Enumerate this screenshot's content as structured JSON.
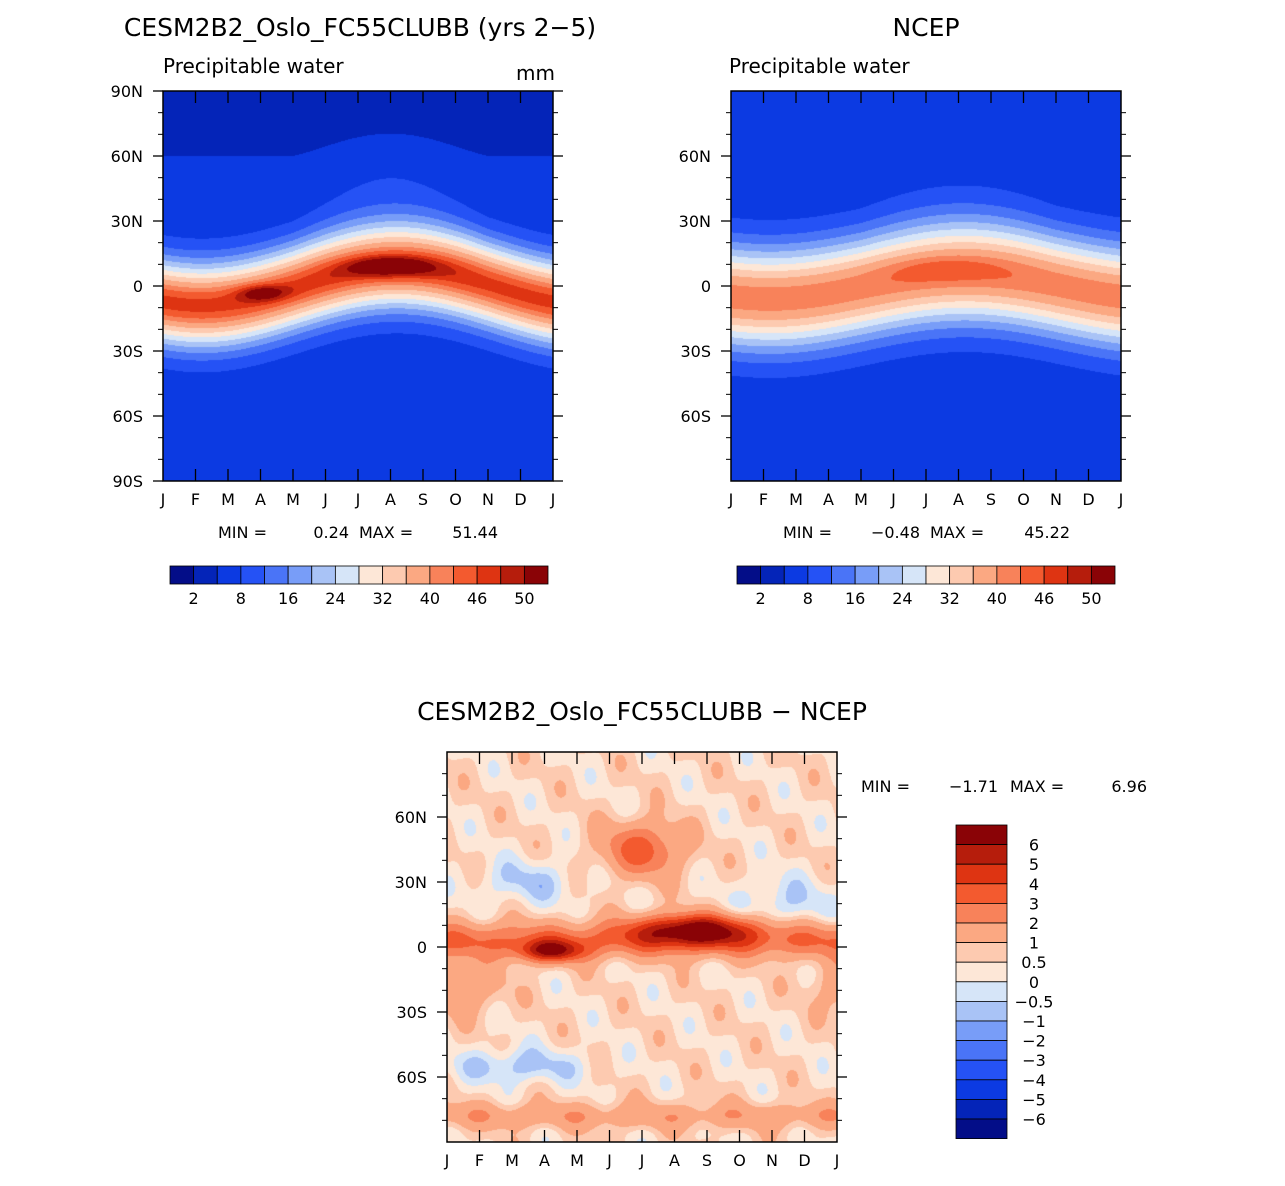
{
  "chart_data": [
    {
      "type": "heatmap",
      "id": "model",
      "title": "CESM2B2_Oslo_FC55CLUBB (yrs 2−5)",
      "subtitle": "Precipitable water",
      "units": "mm",
      "x_categories": [
        "J",
        "F",
        "M",
        "A",
        "M",
        "J",
        "J",
        "A",
        "S",
        "O",
        "N",
        "D",
        "J"
      ],
      "y_ticks": [
        "90N",
        "60N",
        "30N",
        "0",
        "30S",
        "60S",
        "90S"
      ],
      "y_tick_values": [
        90,
        60,
        30,
        0,
        -30,
        -60,
        -90
      ],
      "ylim": [
        -90,
        90
      ],
      "stats": {
        "min_label": "MIN =",
        "min": "0.24",
        "max_label": "MAX =",
        "max": "51.44"
      },
      "colorbar_labels": [
        "2",
        "8",
        "16",
        "24",
        "32",
        "40",
        "46",
        "50"
      ],
      "colorbar_colors": [
        "#030d88",
        "#0424b8",
        "#0c3ae2",
        "#2552f5",
        "#4a74f7",
        "#789df8",
        "#a9c3f6",
        "#d6e5f8",
        "#fde7d7",
        "#fdcab0",
        "#fba882",
        "#f8825a",
        "#f35a2f",
        "#de3412",
        "#b61d0c",
        "#8a0306"
      ]
    },
    {
      "type": "heatmap",
      "id": "obs",
      "title": "NCEP",
      "subtitle": "Precipitable water",
      "x_categories": [
        "J",
        "F",
        "M",
        "A",
        "M",
        "J",
        "J",
        "A",
        "S",
        "O",
        "N",
        "D",
        "J"
      ],
      "y_ticks": [
        "60N",
        "30N",
        "0",
        "30S",
        "60S"
      ],
      "y_tick_values": [
        60,
        30,
        0,
        -30,
        -60
      ],
      "ylim": [
        -90,
        90
      ],
      "stats": {
        "min_label": "MIN =",
        "min": "−0.48",
        "max_label": "MAX =",
        "max": "45.22"
      },
      "colorbar_labels": [
        "2",
        "8",
        "16",
        "24",
        "32",
        "40",
        "46",
        "50"
      ],
      "colorbar_colors": [
        "#030d88",
        "#0424b8",
        "#0c3ae2",
        "#2552f5",
        "#4a74f7",
        "#789df8",
        "#a9c3f6",
        "#d6e5f8",
        "#fde7d7",
        "#fdcab0",
        "#fba882",
        "#f8825a",
        "#f35a2f",
        "#de3412",
        "#b61d0c",
        "#8a0306"
      ]
    },
    {
      "type": "heatmap",
      "id": "diff",
      "title": "CESM2B2_Oslo_FC55CLUBB − NCEP",
      "x_categories": [
        "J",
        "F",
        "M",
        "A",
        "M",
        "J",
        "J",
        "A",
        "S",
        "O",
        "N",
        "D",
        "J"
      ],
      "y_ticks": [
        "60N",
        "30N",
        "0",
        "30S",
        "60S"
      ],
      "y_tick_values": [
        60,
        30,
        0,
        -30,
        -60
      ],
      "ylim": [
        -90,
        90
      ],
      "stats": {
        "min_label": "MIN =",
        "min": "−1.71",
        "max_label": "MAX =",
        "max": "6.96"
      },
      "colorbar_labels": [
        "6",
        "5",
        "4",
        "3",
        "2",
        "1",
        "0.5",
        "0",
        "−0.5",
        "−1",
        "−2",
        "−3",
        "−4",
        "−5",
        "−6"
      ],
      "colorbar_levels": [
        6,
        5,
        4,
        3,
        2,
        1,
        0.5,
        0,
        -0.5,
        -1,
        -2,
        -3,
        -4,
        -5,
        -6
      ],
      "colorbar_colors": [
        "#8a0306",
        "#b61d0c",
        "#de3412",
        "#f35a2f",
        "#f8825a",
        "#fba882",
        "#fdcab0",
        "#fde7d7",
        "#d6e5f8",
        "#a9c3f6",
        "#789df8",
        "#4a74f7",
        "#2552f5",
        "#0c3ae2",
        "#0424b8",
        "#030d88"
      ]
    }
  ]
}
